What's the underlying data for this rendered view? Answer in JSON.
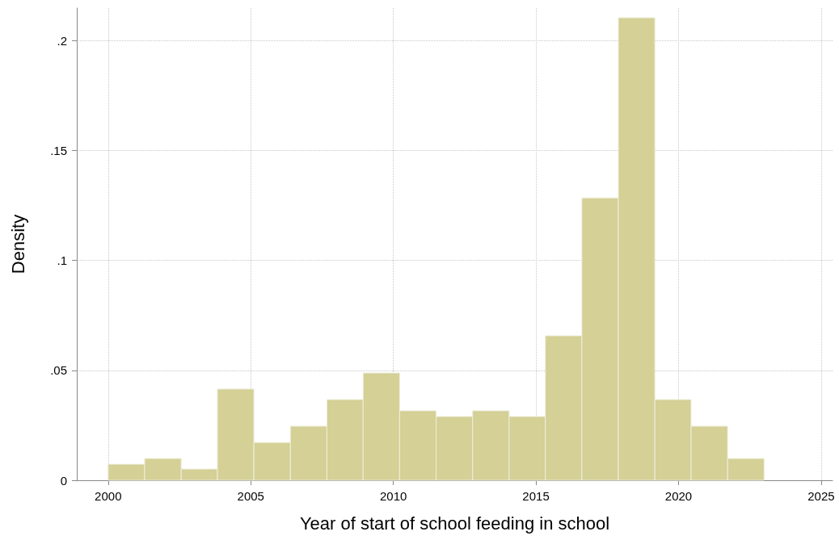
{
  "chart_data": {
    "type": "histogram",
    "xlabel": "Year of start of school feeding in school",
    "ylabel": "Density",
    "bins": [
      2000,
      2001.28,
      2002.56,
      2003.83,
      2005.11,
      2006.39,
      2007.67,
      2008.94,
      2010.22,
      2011.5,
      2012.78,
      2014.06,
      2015.33,
      2016.61,
      2017.89,
      2019.17,
      2020.44,
      2021.72,
      2023
    ],
    "values": [
      0.0073,
      0.0099,
      0.0051,
      0.0415,
      0.0172,
      0.0246,
      0.0367,
      0.0488,
      0.0316,
      0.029,
      0.0316,
      0.029,
      0.0657,
      0.1284,
      0.2103,
      0.0367,
      0.0246,
      0.0099
    ],
    "color": "#d4d096",
    "xlim": [
      1998.9,
      2025.4
    ],
    "xticks": [
      2000,
      2005,
      2010,
      2015,
      2020,
      2025
    ],
    "ylim": [
      0,
      0.2147
    ],
    "yticks": [
      0,
      {
        "value": 0.05,
        "label": ".05"
      },
      {
        "value": 0.1,
        "label": ".1"
      },
      {
        "value": 0.15,
        "label": ".15"
      },
      {
        "value": 0.2,
        "label": ".2"
      }
    ],
    "grid": true
  }
}
